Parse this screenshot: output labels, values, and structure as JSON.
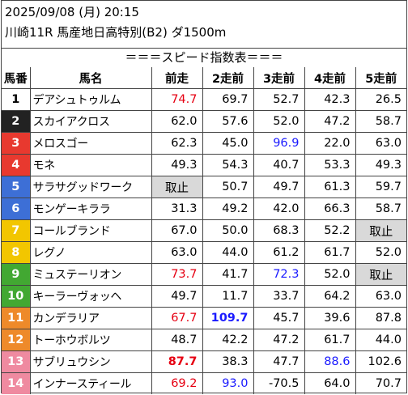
{
  "header": {
    "date": "2025/09/08 (月) 20:15",
    "race": "川崎11R 馬産地日高特別(B2) ダ1500m"
  },
  "title": "＝＝＝スピード指数表＝＝＝",
  "columns": [
    "馬番",
    "馬名",
    "前走",
    "2走前",
    "3走前",
    "4走前",
    "5走前"
  ],
  "colors": {
    "red": "#e60012",
    "blue": "#1a1aff",
    "cancel_bg": "#d9d9d9",
    "white_text": "#ffffff"
  },
  "rows": [
    {
      "num": "1",
      "num_bg": "#ffffff",
      "num_fg": "#000000",
      "name": "デアシュトゥルム",
      "vals": [
        {
          "v": "74.7",
          "c": "red"
        },
        {
          "v": "69.7"
        },
        {
          "v": "52.7"
        },
        {
          "v": "42.3"
        },
        {
          "v": "26.5"
        }
      ]
    },
    {
      "num": "2",
      "num_bg": "#222222",
      "num_fg": "#ffffff",
      "name": "スカイアクロス",
      "vals": [
        {
          "v": "62.0"
        },
        {
          "v": "57.6"
        },
        {
          "v": "52.0"
        },
        {
          "v": "47.2"
        },
        {
          "v": "58.7"
        }
      ]
    },
    {
      "num": "3",
      "num_bg": "#e8392f",
      "num_fg": "#ffffff",
      "name": "メロスゴー",
      "vals": [
        {
          "v": "62.3"
        },
        {
          "v": "45.0"
        },
        {
          "v": "96.9",
          "c": "blue"
        },
        {
          "v": "22.0"
        },
        {
          "v": "63.0"
        }
      ]
    },
    {
      "num": "4",
      "num_bg": "#e8392f",
      "num_fg": "#ffffff",
      "name": "モネ",
      "vals": [
        {
          "v": "49.3"
        },
        {
          "v": "54.3"
        },
        {
          "v": "40.7"
        },
        {
          "v": "53.3"
        },
        {
          "v": "49.3"
        }
      ]
    },
    {
      "num": "5",
      "num_bg": "#3d6fd6",
      "num_fg": "#ffffff",
      "name": "サラサグッドワーク",
      "vals": [
        {
          "v": "取止",
          "cancel": true
        },
        {
          "v": "50.7"
        },
        {
          "v": "49.7"
        },
        {
          "v": "61.3"
        },
        {
          "v": "59.7"
        }
      ]
    },
    {
      "num": "6",
      "num_bg": "#3d6fd6",
      "num_fg": "#ffffff",
      "name": "モンゲーキララ",
      "vals": [
        {
          "v": "31.3"
        },
        {
          "v": "49.2"
        },
        {
          "v": "42.0"
        },
        {
          "v": "66.3"
        },
        {
          "v": "58.7"
        }
      ]
    },
    {
      "num": "7",
      "num_bg": "#f2c600",
      "num_fg": "#ffffff",
      "name": "コールブランド",
      "vals": [
        {
          "v": "67.0"
        },
        {
          "v": "50.0"
        },
        {
          "v": "68.3"
        },
        {
          "v": "52.2"
        },
        {
          "v": "取止",
          "cancel": true
        }
      ]
    },
    {
      "num": "8",
      "num_bg": "#f2c600",
      "num_fg": "#ffffff",
      "name": "レグノ",
      "vals": [
        {
          "v": "63.0"
        },
        {
          "v": "44.0"
        },
        {
          "v": "61.2"
        },
        {
          "v": "61.7"
        },
        {
          "v": "52.0"
        }
      ]
    },
    {
      "num": "9",
      "num_bg": "#42a832",
      "num_fg": "#ffffff",
      "name": "ミュステーリオン",
      "vals": [
        {
          "v": "73.7",
          "c": "red"
        },
        {
          "v": "41.7"
        },
        {
          "v": "72.3",
          "c": "blue"
        },
        {
          "v": "52.0"
        },
        {
          "v": "取止",
          "cancel": true
        }
      ]
    },
    {
      "num": "10",
      "num_bg": "#42a832",
      "num_fg": "#ffffff",
      "name": "キーラーヴォッヘ",
      "vals": [
        {
          "v": "49.7"
        },
        {
          "v": "11.7"
        },
        {
          "v": "33.7"
        },
        {
          "v": "64.2"
        },
        {
          "v": "63.0"
        }
      ]
    },
    {
      "num": "11",
      "num_bg": "#ee8a2a",
      "num_fg": "#ffffff",
      "name": "カンデラリア",
      "vals": [
        {
          "v": "67.7",
          "c": "red"
        },
        {
          "v": "109.7",
          "c": "blue",
          "b": true
        },
        {
          "v": "45.7"
        },
        {
          "v": "39.6"
        },
        {
          "v": "87.8"
        }
      ]
    },
    {
      "num": "12",
      "num_bg": "#ee8a2a",
      "num_fg": "#ffffff",
      "name": "トーホウボルツ",
      "vals": [
        {
          "v": "48.7"
        },
        {
          "v": "42.2"
        },
        {
          "v": "47.2"
        },
        {
          "v": "61.7"
        },
        {
          "v": "44.0"
        }
      ]
    },
    {
      "num": "13",
      "num_bg": "#ef8aa0",
      "num_fg": "#ffffff",
      "name": "サブリュウシン",
      "vals": [
        {
          "v": "87.7",
          "c": "red",
          "b": true
        },
        {
          "v": "38.3"
        },
        {
          "v": "47.7"
        },
        {
          "v": "88.6",
          "c": "blue"
        },
        {
          "v": "102.6"
        }
      ]
    },
    {
      "num": "14",
      "num_bg": "#ef8aa0",
      "num_fg": "#ffffff",
      "name": "インナースティール",
      "vals": [
        {
          "v": "69.2",
          "c": "red"
        },
        {
          "v": "93.0",
          "c": "blue"
        },
        {
          "v": "-70.5"
        },
        {
          "v": "64.0"
        },
        {
          "v": "70.7"
        }
      ]
    }
  ]
}
